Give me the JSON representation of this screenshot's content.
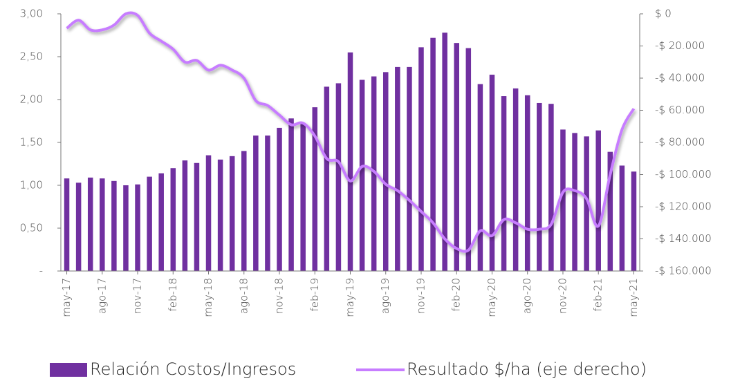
{
  "chart_data": {
    "type": "bar",
    "categories": [
      "may-17",
      null,
      null,
      "ago-17",
      null,
      null,
      "nov-17",
      null,
      null,
      "feb-18",
      null,
      null,
      "may-18",
      null,
      null,
      "ago-18",
      null,
      null,
      "nov-18",
      null,
      null,
      "feb-19",
      null,
      null,
      "may-19",
      null,
      null,
      "ago-19",
      null,
      null,
      "nov-19",
      null,
      null,
      "feb-20",
      null,
      null,
      "may-20",
      null,
      null,
      "ago-20",
      null,
      null,
      "nov-20",
      null,
      null,
      "feb-21",
      null,
      null,
      "may-21"
    ],
    "series": [
      {
        "name": "Relación Costos/Ingresos",
        "type": "bar",
        "color": "#7030a0",
        "values": [
          1.08,
          1.03,
          1.09,
          1.08,
          1.05,
          1.0,
          1.01,
          1.1,
          1.14,
          1.2,
          1.29,
          1.26,
          1.35,
          1.3,
          1.34,
          1.4,
          1.58,
          1.58,
          1.67,
          1.78,
          1.72,
          1.91,
          2.15,
          2.19,
          2.55,
          2.23,
          2.27,
          2.32,
          2.38,
          2.38,
          2.61,
          2.72,
          2.78,
          2.66,
          2.6,
          2.18,
          2.29,
          2.04,
          2.13,
          2.05,
          1.96,
          1.95,
          1.65,
          1.61,
          1.57,
          1.64,
          1.39,
          1.23,
          1.16
        ]
      },
      {
        "name": "Resultado $/ha (eje derecho)",
        "type": "line",
        "axis": "y2",
        "color": "#c77dff",
        "values": [
          -9000,
          -4000,
          -10000,
          -10000,
          -7000,
          0,
          -1000,
          -12000,
          -17000,
          -22000,
          -30000,
          -29000,
          -35000,
          -32000,
          -35000,
          -40000,
          -54000,
          -57000,
          -63000,
          -69000,
          -68000,
          -76000,
          -90000,
          -92000,
          -104000,
          -95000,
          -98000,
          -106000,
          -110000,
          -116000,
          -123000,
          -130000,
          -140000,
          -146000,
          -147000,
          -135000,
          -138000,
          -128000,
          -130000,
          -134000,
          -134000,
          -131000,
          -111000,
          -110000,
          -115000,
          -132000,
          -100000,
          -72000,
          -59000
        ]
      }
    ],
    "ylim": [
      0,
      3
    ],
    "yticks": [
      {
        "value": 0,
        "label": "-"
      },
      {
        "value": 0.5,
        "label": "0,50"
      },
      {
        "value": 1,
        "label": "1,00"
      },
      {
        "value": 1.5,
        "label": "1,50"
      },
      {
        "value": 2,
        "label": "2,00"
      },
      {
        "value": 2.5,
        "label": "2,50"
      },
      {
        "value": 3,
        "label": "3,00"
      }
    ],
    "y2lim": [
      -160000,
      0
    ],
    "y2ticks": [
      {
        "value": -160000,
        "label": "-$ 160.000"
      },
      {
        "value": -140000,
        "label": "-$ 140.000"
      },
      {
        "value": -120000,
        "label": "-$ 120.000"
      },
      {
        "value": -100000,
        "label": "-$ 100.000"
      },
      {
        "value": -80000,
        "label": "-$ 80.000"
      },
      {
        "value": -60000,
        "label": "-$ 60.000"
      },
      {
        "value": -40000,
        "label": "-$ 40.000"
      },
      {
        "value": -20000,
        "label": "-$ 20.000"
      },
      {
        "value": 0,
        "label": "$ 0"
      }
    ],
    "legend": "bottom"
  }
}
